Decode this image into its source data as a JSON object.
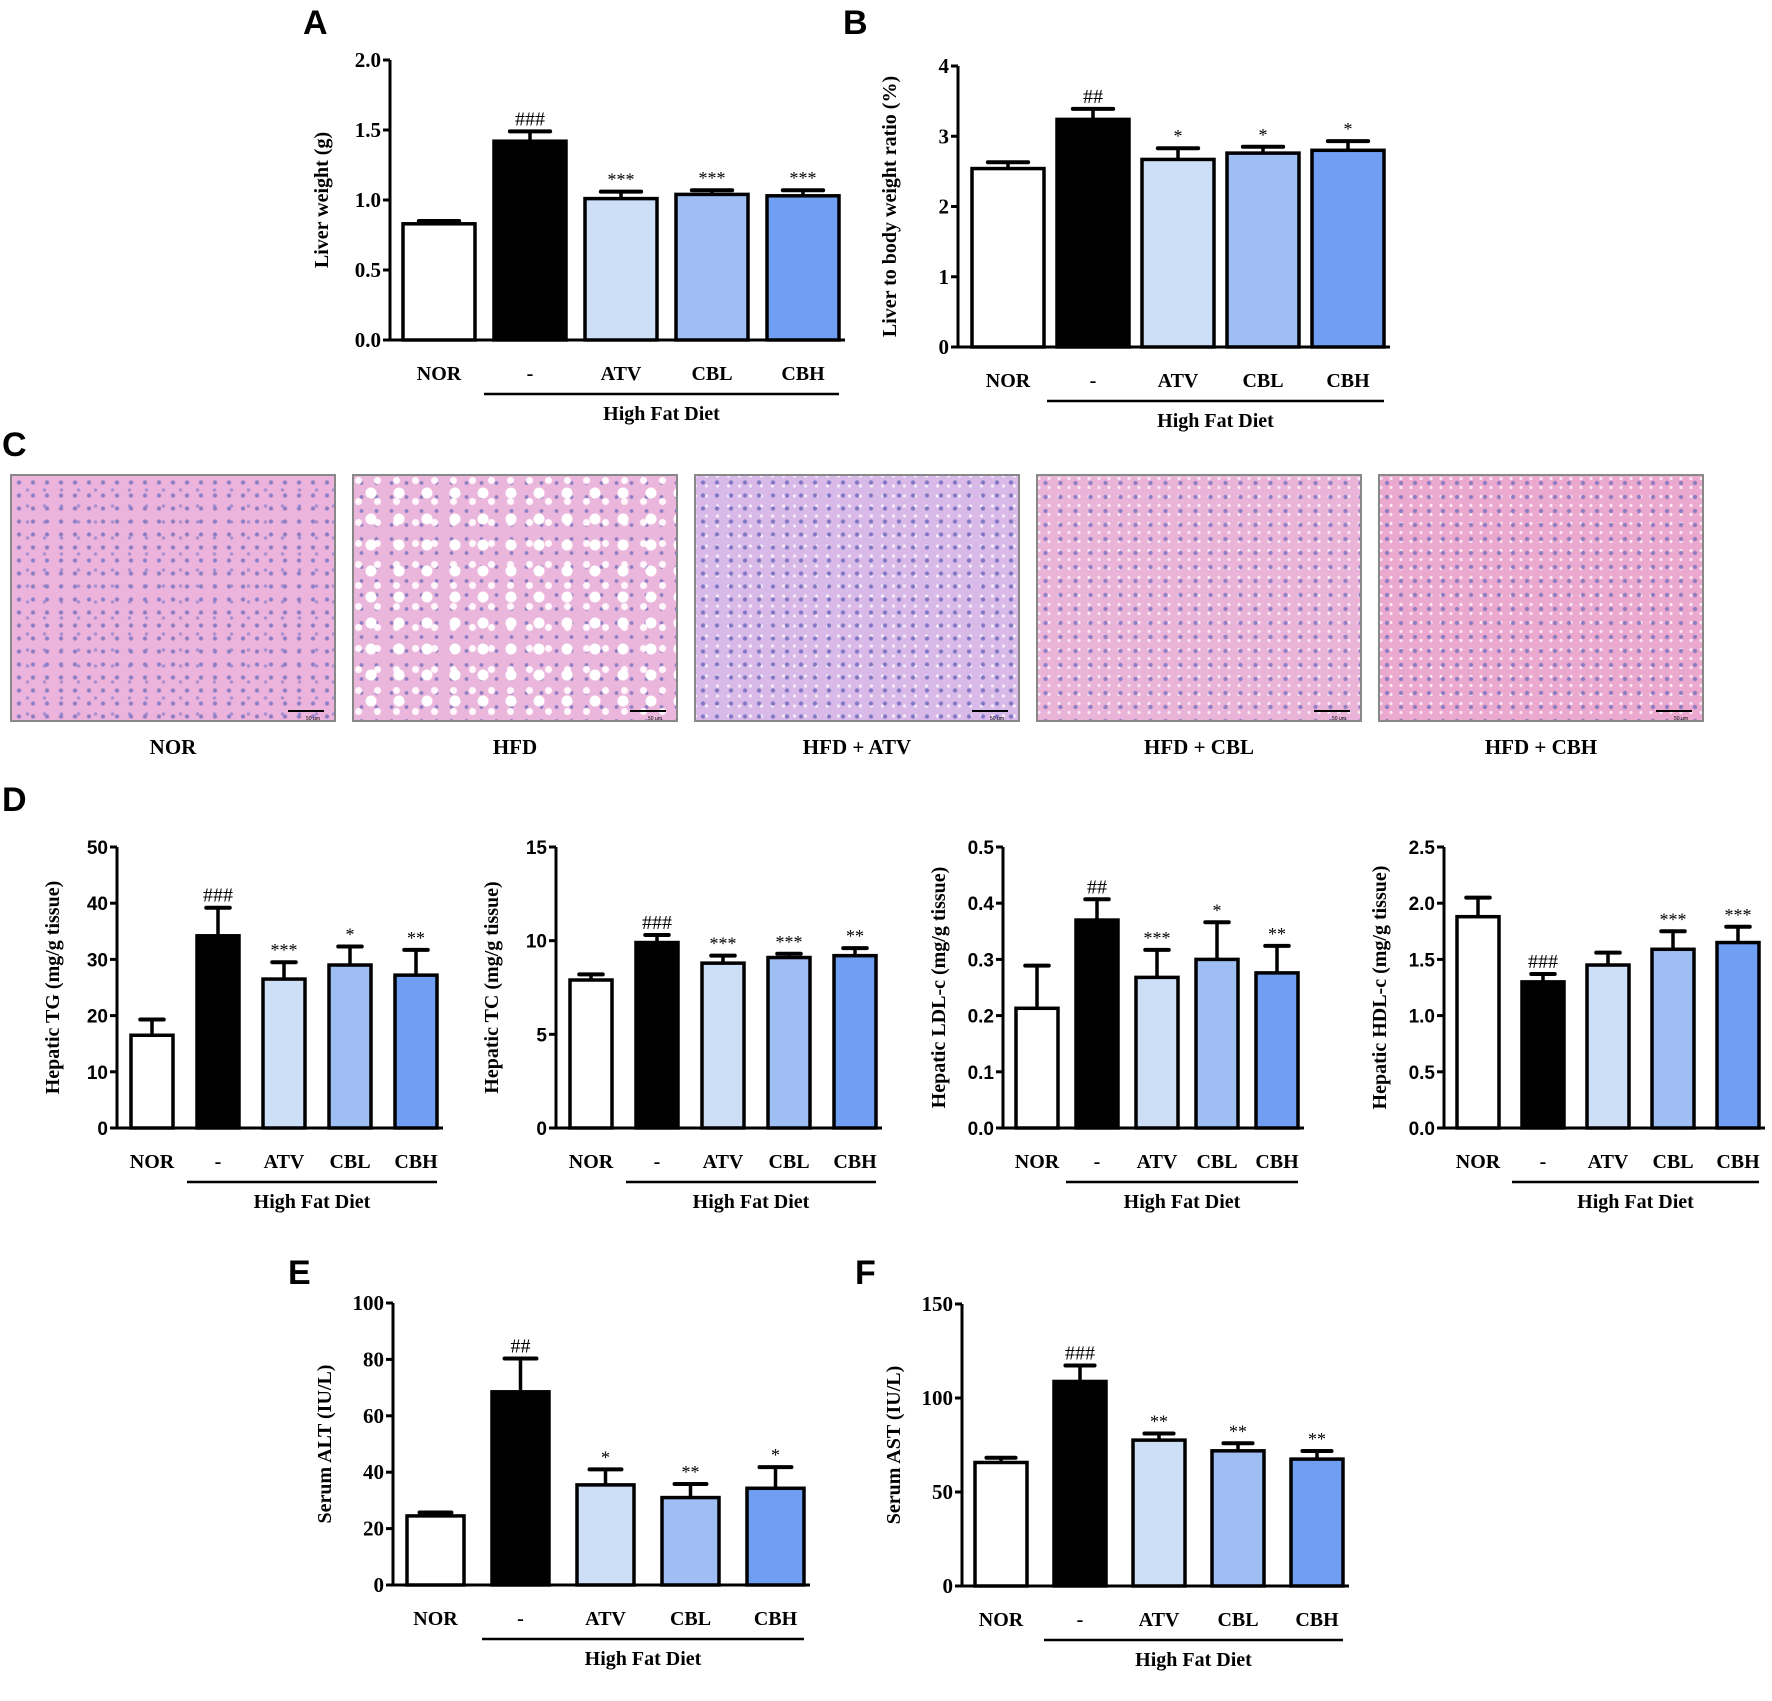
{
  "panels": {
    "A": "A",
    "B": "B",
    "C": "C",
    "D": "D",
    "E": "E",
    "F": "F"
  },
  "groups": [
    "NOR",
    "-",
    "ATV",
    "CBL",
    "CBH"
  ],
  "group_bracket_label": "High Fat Diet",
  "colors": {
    "NOR": "#ffffff",
    "HFD": "#000000",
    "ATV": "#cddff7",
    "CBL": "#9fbef4",
    "CBH": "#6f9ef3"
  },
  "histology": {
    "labels": [
      "NOR",
      "HFD",
      "HFD  + ATV",
      "HFD  + CBL",
      "HFD  + CBH"
    ],
    "scale_bar": "50 μm"
  },
  "chart_data": [
    {
      "id": "A",
      "type": "bar",
      "ylabel": "Liver weight (g)",
      "xlabel": "High Fat Diet",
      "categories": [
        "NOR",
        "-",
        "ATV",
        "CBL",
        "CBH"
      ],
      "values": [
        0.83,
        1.42,
        1.01,
        1.04,
        1.03
      ],
      "errors": [
        0.02,
        0.07,
        0.05,
        0.03,
        0.04
      ],
      "annotations": [
        "",
        "###",
        "***",
        "***",
        "***"
      ],
      "yticks": [
        "0.0",
        "0.5",
        "1.0",
        "1.5",
        "2.0"
      ],
      "ylim": [
        0,
        2.0
      ]
    },
    {
      "id": "B",
      "type": "bar",
      "ylabel": "Liver to body weight ratio (%)",
      "xlabel": "High Fat Diet",
      "categories": [
        "NOR",
        "-",
        "ATV",
        "CBL",
        "CBH"
      ],
      "values": [
        2.54,
        3.24,
        2.67,
        2.76,
        2.8
      ],
      "errors": [
        0.09,
        0.15,
        0.16,
        0.09,
        0.13
      ],
      "annotations": [
        "",
        "##",
        "*",
        "*",
        "*"
      ],
      "yticks": [
        "0",
        "1",
        "2",
        "3",
        "4"
      ],
      "ylim": [
        0,
        4
      ]
    },
    {
      "id": "D1",
      "type": "bar",
      "ylabel": "Hepatic TG (mg/g tissue)",
      "xlabel": "High Fat Diet",
      "categories": [
        "NOR",
        "-",
        "ATV",
        "CBL",
        "CBH"
      ],
      "values": [
        16.5,
        34.2,
        26.5,
        29.0,
        27.2
      ],
      "errors": [
        2.8,
        5.0,
        3.0,
        3.3,
        4.5
      ],
      "annotations": [
        "",
        "###",
        "***",
        "*",
        "**"
      ],
      "yticks": [
        "0",
        "10",
        "20",
        "30",
        "40",
        "50"
      ],
      "ylim": [
        0,
        50
      ]
    },
    {
      "id": "D2",
      "type": "bar",
      "ylabel": "Hepatic TC (mg/g tissue)",
      "xlabel": "High Fat Diet",
      "categories": [
        "NOR",
        "-",
        "ATV",
        "CBL",
        "CBH"
      ],
      "values": [
        7.9,
        9.9,
        8.8,
        9.1,
        9.2
      ],
      "errors": [
        0.3,
        0.4,
        0.4,
        0.2,
        0.4
      ],
      "annotations": [
        "",
        "###",
        "***",
        "***",
        "**"
      ],
      "yticks": [
        "0",
        "5",
        "10",
        "15"
      ],
      "ylim": [
        0,
        15
      ]
    },
    {
      "id": "D3",
      "type": "bar",
      "ylabel": "Hepatic LDL-c (mg/g tissue)",
      "xlabel": "High Fat Diet",
      "categories": [
        "NOR",
        "-",
        "ATV",
        "CBL",
        "CBH"
      ],
      "values": [
        0.213,
        0.37,
        0.268,
        0.3,
        0.276
      ],
      "errors": [
        0.076,
        0.037,
        0.049,
        0.066,
        0.048
      ],
      "annotations": [
        "",
        "##",
        "***",
        "*",
        "**"
      ],
      "yticks": [
        "0.0",
        "0.1",
        "0.2",
        "0.3",
        "0.4",
        "0.5"
      ],
      "ylim": [
        0,
        0.5
      ]
    },
    {
      "id": "D4",
      "type": "bar",
      "ylabel": "Hepatic HDL-c (mg/g tissue)",
      "xlabel": "High Fat Diet",
      "categories": [
        "NOR",
        "-",
        "ATV",
        "CBL",
        "CBH"
      ],
      "values": [
        1.88,
        1.3,
        1.45,
        1.59,
        1.65
      ],
      "errors": [
        0.17,
        0.07,
        0.11,
        0.16,
        0.14
      ],
      "annotations": [
        "",
        "###",
        "",
        "***",
        "***"
      ],
      "yticks": [
        "0.0",
        "0.5",
        "1.0",
        "1.5",
        "2.0",
        "2.5"
      ],
      "ylim": [
        0,
        2.5
      ]
    },
    {
      "id": "E",
      "type": "bar",
      "ylabel": "Serum ALT (IU/L)",
      "xlabel": "High Fat Diet",
      "categories": [
        "NOR",
        "-",
        "ATV",
        "CBL",
        "CBH"
      ],
      "values": [
        24.5,
        68.5,
        35.5,
        31.0,
        34.3
      ],
      "errors": [
        1.2,
        11.8,
        5.5,
        4.8,
        7.5
      ],
      "annotations": [
        "",
        "##",
        "*",
        "**",
        "*"
      ],
      "yticks": [
        "0",
        "20",
        "40",
        "60",
        "80",
        "100"
      ],
      "ylim": [
        0,
        100
      ]
    },
    {
      "id": "F",
      "type": "bar",
      "ylabel": "Serum AST (IU/L)",
      "xlabel": "High Fat Diet",
      "categories": [
        "NOR",
        "-",
        "ATV",
        "CBL",
        "CBH"
      ],
      "values": [
        65.7,
        108.8,
        77.6,
        71.9,
        67.5
      ],
      "errors": [
        2.5,
        8.5,
        3.5,
        4.0,
        4.3
      ],
      "annotations": [
        "",
        "###",
        "**",
        "**",
        "**"
      ],
      "yticks": [
        "0",
        "50",
        "100",
        "150"
      ],
      "ylim": [
        0,
        150
      ]
    }
  ]
}
